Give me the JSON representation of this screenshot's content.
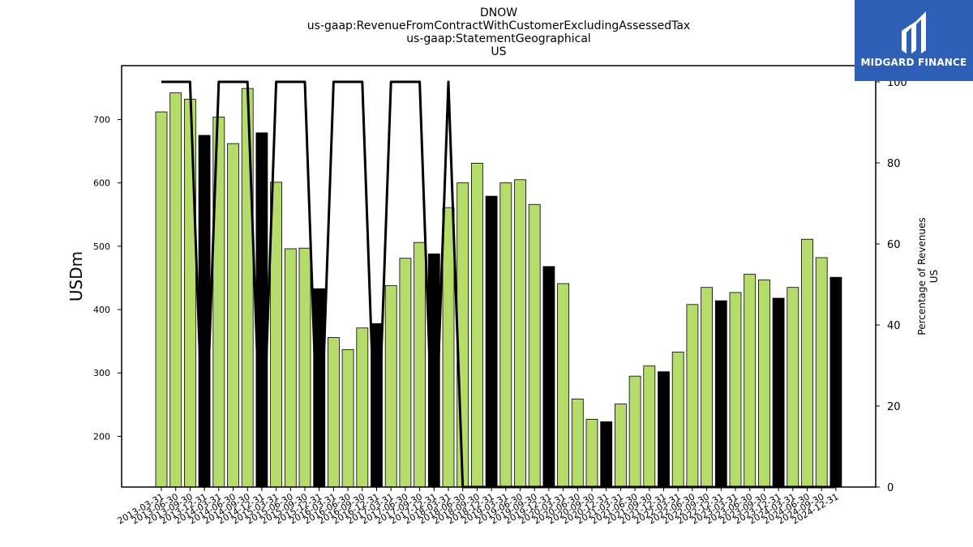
{
  "brand": {
    "name": "MIDGARD FINANCE",
    "bg": "#2d5fb6"
  },
  "chart_data": {
    "type": "bar",
    "title_lines": [
      "DNOW",
      "us-gaap:RevenueFromContractWithCustomerExcludingAssessedTax",
      "us-gaap:StatementGeographical",
      "US"
    ],
    "ylabel": "USDm",
    "y2label_lines": [
      "Percentage of Revenues",
      "US"
    ],
    "ylim": [
      120,
      785
    ],
    "y2lim": [
      0,
      104
    ],
    "yticks": [
      200,
      300,
      400,
      500,
      600,
      700
    ],
    "y2ticks": [
      0,
      20,
      40,
      60,
      80,
      100
    ],
    "colors": {
      "quarter": "#b5dc6b",
      "year_end": "#000000",
      "line": "#000000"
    },
    "categories": [
      "2013-03-31",
      "2013-06-30",
      "2013-09-30",
      "2013-12-31",
      "2014-03-31",
      "2014-06-30",
      "2014-09-30",
      "2014-12-31",
      "2015-03-31",
      "2015-06-30",
      "2015-09-30",
      "2015-12-31",
      "2016-03-31",
      "2016-06-30",
      "2016-09-30",
      "2016-12-31",
      "2017-03-31",
      "2017-06-30",
      "2017-09-30",
      "2017-12-31",
      "2018-03-31",
      "2018-06-30",
      "2018-09-30",
      "2018-12-31",
      "2019-03-31",
      "2019-06-30",
      "2019-09-30",
      "2019-12-31",
      "2020-03-31",
      "2020-06-30",
      "2020-09-30",
      "2020-12-31",
      "2021-03-31",
      "2021-06-30",
      "2021-09-30",
      "2021-12-31",
      "2022-03-31",
      "2022-06-30",
      "2022-09-30",
      "2022-12-31",
      "2023-03-31",
      "2023-06-30",
      "2023-09-30",
      "2023-12-31",
      "2024-03-31",
      "2024-06-30",
      "2024-09-30",
      "2024-12-31"
    ],
    "values": [
      712,
      742,
      732,
      675,
      704,
      662,
      749,
      679,
      601,
      496,
      497,
      433,
      356,
      337,
      371,
      378,
      438,
      481,
      506,
      488,
      561,
      600,
      631,
      579,
      600,
      605,
      566,
      468,
      441,
      259,
      227,
      223,
      251,
      295,
      311,
      302,
      333,
      408,
      435,
      414,
      427,
      456,
      447,
      418,
      435,
      511,
      482,
      451
    ],
    "year_end": [
      false,
      false,
      false,
      true,
      false,
      false,
      false,
      true,
      false,
      false,
      false,
      true,
      false,
      false,
      false,
      true,
      false,
      false,
      false,
      true,
      false,
      false,
      false,
      true,
      false,
      false,
      false,
      true,
      false,
      false,
      false,
      true,
      false,
      false,
      false,
      true,
      false,
      false,
      false,
      true,
      false,
      false,
      false,
      true,
      false,
      false,
      false,
      true
    ],
    "percentage_series": {
      "name": "Percentage of Revenues US",
      "values": [
        100,
        100,
        100,
        0,
        100,
        100,
        100,
        0,
        100,
        100,
        100,
        0,
        100,
        100,
        100,
        0,
        100,
        100,
        100,
        0,
        100,
        0,
        0,
        0,
        0,
        0,
        0,
        0,
        0,
        0,
        0,
        0,
        0,
        0,
        0,
        0,
        0,
        0,
        0,
        0,
        0,
        0,
        0,
        0,
        0,
        0,
        0,
        0
      ]
    }
  }
}
